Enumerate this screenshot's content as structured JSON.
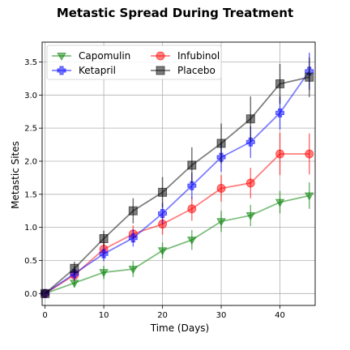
{
  "chart_data": {
    "type": "line",
    "title": "Metastic Spread During Treatment",
    "xlabel": "Time (Days)",
    "ylabel": "Metastic Sites",
    "xlim": [
      -0.5,
      46
    ],
    "ylim": [
      -0.18,
      3.8
    ],
    "x_ticks": [
      0,
      10,
      20,
      30,
      40
    ],
    "y_ticks": [
      0.0,
      0.5,
      1.0,
      1.5,
      2.0,
      2.5,
      3.0,
      3.5
    ],
    "x_tick_labels": [
      "0",
      "10",
      "20",
      "30",
      "40"
    ],
    "y_tick_labels": [
      "0.0",
      "0.5",
      "1.0",
      "1.5",
      "2.0",
      "2.5",
      "3.0",
      "3.5"
    ],
    "grid": true,
    "legend_position": "top-left",
    "x": [
      0,
      5,
      10,
      15,
      20,
      25,
      30,
      35,
      40,
      45
    ],
    "series": [
      {
        "name": "Capomulin",
        "color": "#008000",
        "marker": "triangle-down",
        "values": [
          0.0,
          0.16,
          0.32,
          0.37,
          0.65,
          0.81,
          1.09,
          1.18,
          1.38,
          1.48
        ],
        "errors": [
          0.0,
          0.07,
          0.1,
          0.12,
          0.12,
          0.15,
          0.16,
          0.16,
          0.17,
          0.2
        ]
      },
      {
        "name": "Infubinol",
        "color": "#ff0000",
        "marker": "circle",
        "values": [
          0.0,
          0.28,
          0.67,
          0.9,
          1.05,
          1.28,
          1.59,
          1.67,
          2.11,
          2.11
        ],
        "errors": [
          0.0,
          0.09,
          0.12,
          0.13,
          0.16,
          0.18,
          0.2,
          0.23,
          0.32,
          0.31
        ]
      },
      {
        "name": "Ketapril",
        "color": "#0000ff",
        "marker": "plus-filled",
        "values": [
          0.0,
          0.3,
          0.6,
          0.84,
          1.21,
          1.63,
          2.06,
          2.29,
          2.73,
          3.36
        ],
        "errors": [
          0.0,
          0.1,
          0.11,
          0.13,
          0.16,
          0.2,
          0.22,
          0.24,
          0.25,
          0.28
        ]
      },
      {
        "name": "Placebo",
        "color": "#000000",
        "marker": "square",
        "values": [
          0.0,
          0.38,
          0.83,
          1.25,
          1.53,
          1.94,
          2.27,
          2.64,
          3.17,
          3.27
        ],
        "errors": [
          0.0,
          0.1,
          0.12,
          0.19,
          0.23,
          0.27,
          0.3,
          0.34,
          0.3,
          0.3
        ]
      }
    ]
  }
}
